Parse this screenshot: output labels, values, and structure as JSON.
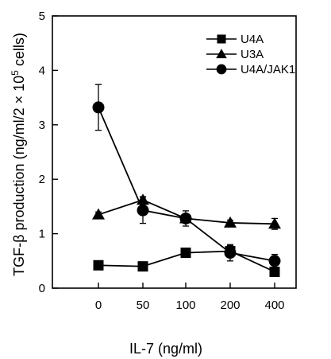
{
  "chart_data": {
    "type": "line",
    "xlabel": "IL-7 (ng/ml)",
    "ylabel": {
      "prefix": "TGF-β production (ng/ml/2 × 10",
      "superscript": "5",
      "suffix": " cells)"
    },
    "categories": [
      "0",
      "50",
      "100",
      "200",
      "400"
    ],
    "yticks": [
      "0",
      "1",
      "2",
      "3",
      "4",
      "5"
    ],
    "ylim": [
      0,
      5
    ],
    "grid": false,
    "legend_position": "top-right",
    "series": [
      {
        "name": "U4A",
        "marker": "square",
        "values": [
          0.42,
          0.4,
          0.65,
          0.68,
          0.3
        ],
        "errors": [
          0.04,
          0.04,
          0.05,
          0.1,
          0.05
        ]
      },
      {
        "name": "U3A",
        "marker": "triangle",
        "values": [
          1.35,
          1.62,
          1.28,
          1.2,
          1.18
        ],
        "errors": [
          0.05,
          0.06,
          0.06,
          0.05,
          0.1
        ]
      },
      {
        "name": "U4A/JAK1",
        "marker": "circle",
        "values": [
          3.32,
          1.43,
          1.28,
          0.65,
          0.5
        ],
        "errors": [
          0.42,
          0.24,
          0.14,
          0.15,
          0.12
        ]
      }
    ]
  }
}
